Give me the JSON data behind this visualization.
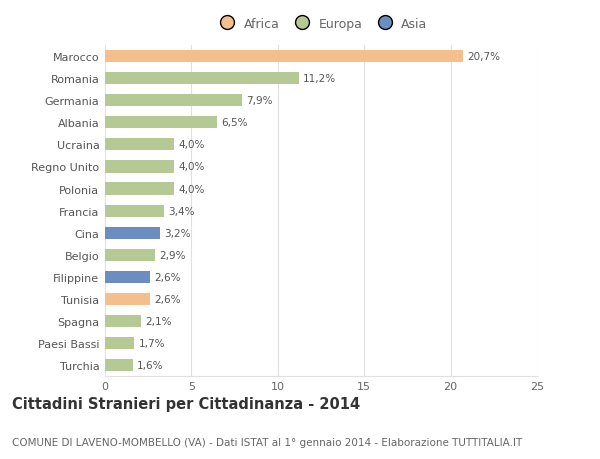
{
  "categories": [
    "Marocco",
    "Romania",
    "Germania",
    "Albania",
    "Ucraina",
    "Regno Unito",
    "Polonia",
    "Francia",
    "Cina",
    "Belgio",
    "Filippine",
    "Tunisia",
    "Spagna",
    "Paesi Bassi",
    "Turchia"
  ],
  "values": [
    20.7,
    11.2,
    7.9,
    6.5,
    4.0,
    4.0,
    4.0,
    3.4,
    3.2,
    2.9,
    2.6,
    2.6,
    2.1,
    1.7,
    1.6
  ],
  "labels": [
    "20,7%",
    "11,2%",
    "7,9%",
    "6,5%",
    "4,0%",
    "4,0%",
    "4,0%",
    "3,4%",
    "3,2%",
    "2,9%",
    "2,6%",
    "2,6%",
    "2,1%",
    "1,7%",
    "1,6%"
  ],
  "bar_colors": [
    "#F5BE8D",
    "#B5C994",
    "#B5C994",
    "#B5C994",
    "#B5C994",
    "#B5C994",
    "#B5C994",
    "#B5C994",
    "#6B8EC2",
    "#B5C994",
    "#6B8EC2",
    "#F5BE8D",
    "#B5C994",
    "#B5C994",
    "#B5C994"
  ],
  "title": "Cittadini Stranieri per Cittadinanza - 2014",
  "subtitle": "COMUNE DI LAVENO-MOMBELLO (VA) - Dati ISTAT al 1° gennaio 2014 - Elaborazione TUTTITALIA.IT",
  "xlim": [
    0,
    25
  ],
  "xticks": [
    0,
    5,
    10,
    15,
    20,
    25
  ],
  "legend_labels": [
    "Africa",
    "Europa",
    "Asia"
  ],
  "legend_colors": [
    "#F5BE8D",
    "#B5C994",
    "#6B8EC2"
  ],
  "background_color": "#ffffff",
  "grid_color": "#e0e0e0",
  "title_fontsize": 10.5,
  "subtitle_fontsize": 7.5,
  "label_fontsize": 7.5,
  "tick_fontsize": 8,
  "legend_fontsize": 9
}
